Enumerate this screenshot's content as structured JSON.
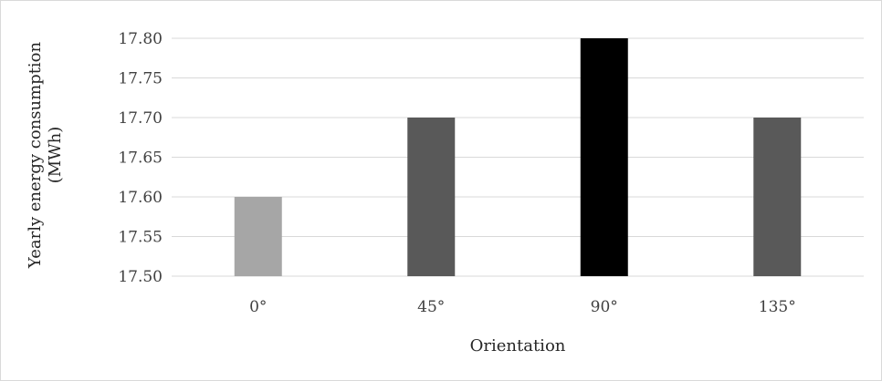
{
  "chart_data": {
    "type": "bar",
    "categories": [
      "0°",
      "45°",
      "90°",
      "135°"
    ],
    "values": [
      17.6,
      17.7,
      17.8,
      17.7
    ],
    "colors": [
      "#a6a6a6",
      "#595959",
      "#000000",
      "#595959"
    ],
    "title": "",
    "xlabel": "Orientation",
    "ylabel_lines": [
      "Yearly energy consumption",
      "(MWh)"
    ],
    "ylim": [
      17.5,
      17.8
    ],
    "yticks": [
      "17.50",
      "17.55",
      "17.60",
      "17.65",
      "17.70",
      "17.75",
      "17.80"
    ],
    "grid": "horizontal",
    "gridline_color": "#d9d9d9",
    "legend": "none"
  }
}
